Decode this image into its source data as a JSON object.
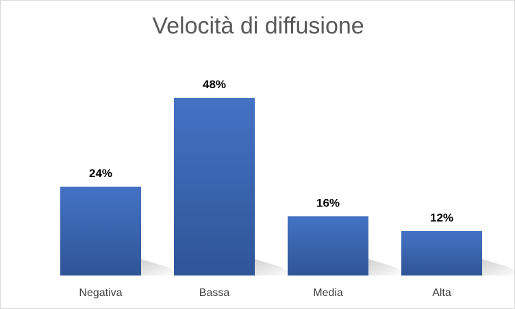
{
  "chart_data": {
    "type": "bar",
    "title": "Velocità di diffusione",
    "categories": [
      "Negativa",
      "Bassa",
      "Media",
      "Alta"
    ],
    "values": [
      24,
      48,
      16,
      12
    ],
    "data_labels": [
      "24%",
      "48%",
      "16%",
      "12%"
    ],
    "xlabel": "",
    "ylabel": "",
    "ylim": [
      0,
      48
    ],
    "grid": false,
    "legend": "none",
    "bar_color": "#4472c4",
    "bar_color_dark": "#2f5597"
  }
}
